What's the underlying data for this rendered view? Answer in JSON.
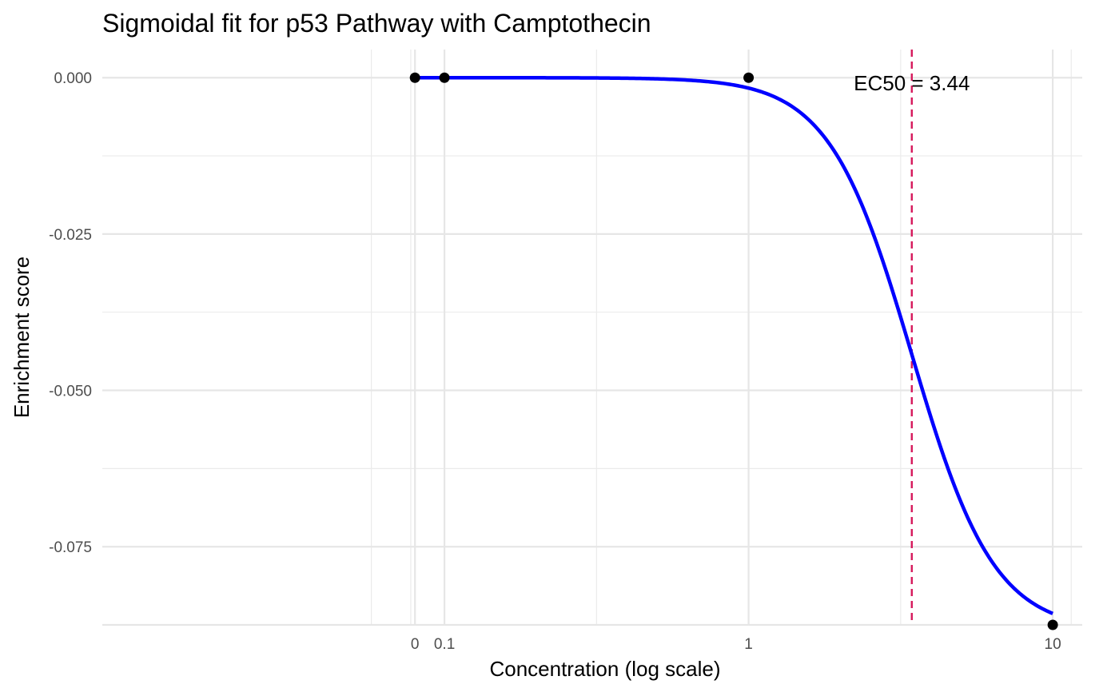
{
  "chart_data": {
    "type": "line",
    "title": "Sigmoidal fit for p53 Pathway with Camptothecin",
    "xlabel": "Concentration (log scale)",
    "ylabel": "Enrichment score",
    "x_scale": "log10",
    "xlim": [
      0.0075,
      12.5
    ],
    "ylim": [
      -0.0875,
      0.0045
    ],
    "x_ticks": [
      {
        "value": 0.08,
        "label": "0"
      },
      {
        "value": 0.1,
        "label": "0.1"
      },
      {
        "value": 1,
        "label": "1"
      },
      {
        "value": 10,
        "label": "10"
      }
    ],
    "y_ticks": [
      {
        "value": 0.0,
        "label": "0.000"
      },
      {
        "value": -0.025,
        "label": "-0.025"
      },
      {
        "value": -0.05,
        "label": "-0.050"
      },
      {
        "value": -0.075,
        "label": "-0.075"
      }
    ],
    "y_minor": [
      0.0125,
      -0.0125,
      -0.0375,
      -0.0625
    ],
    "x_major_grid": [
      0.1,
      1,
      10
    ],
    "x_minor_grid": [
      0.0575,
      0.0775,
      0.3162,
      3.162,
      11.5
    ],
    "points": [
      {
        "x": 0.08,
        "y": 0.0
      },
      {
        "x": 0.1,
        "y": 0.0
      },
      {
        "x": 1,
        "y": 0.0
      },
      {
        "x": 10,
        "y": -0.0875
      }
    ],
    "fit": {
      "name": "Sigmoidal fit",
      "color": "#0000ff",
      "top": 0.0,
      "bottom": -0.0885,
      "ec50": 3.44,
      "hill": 3.2,
      "x_range": [
        0.08,
        10
      ]
    },
    "ec50_line": {
      "x": 3.44,
      "color": "#d6195c"
    },
    "annotation": {
      "text": "EC50 = 3.44",
      "x": 3.44,
      "y": -0.002
    },
    "grid": true,
    "point_color": "#000000"
  }
}
